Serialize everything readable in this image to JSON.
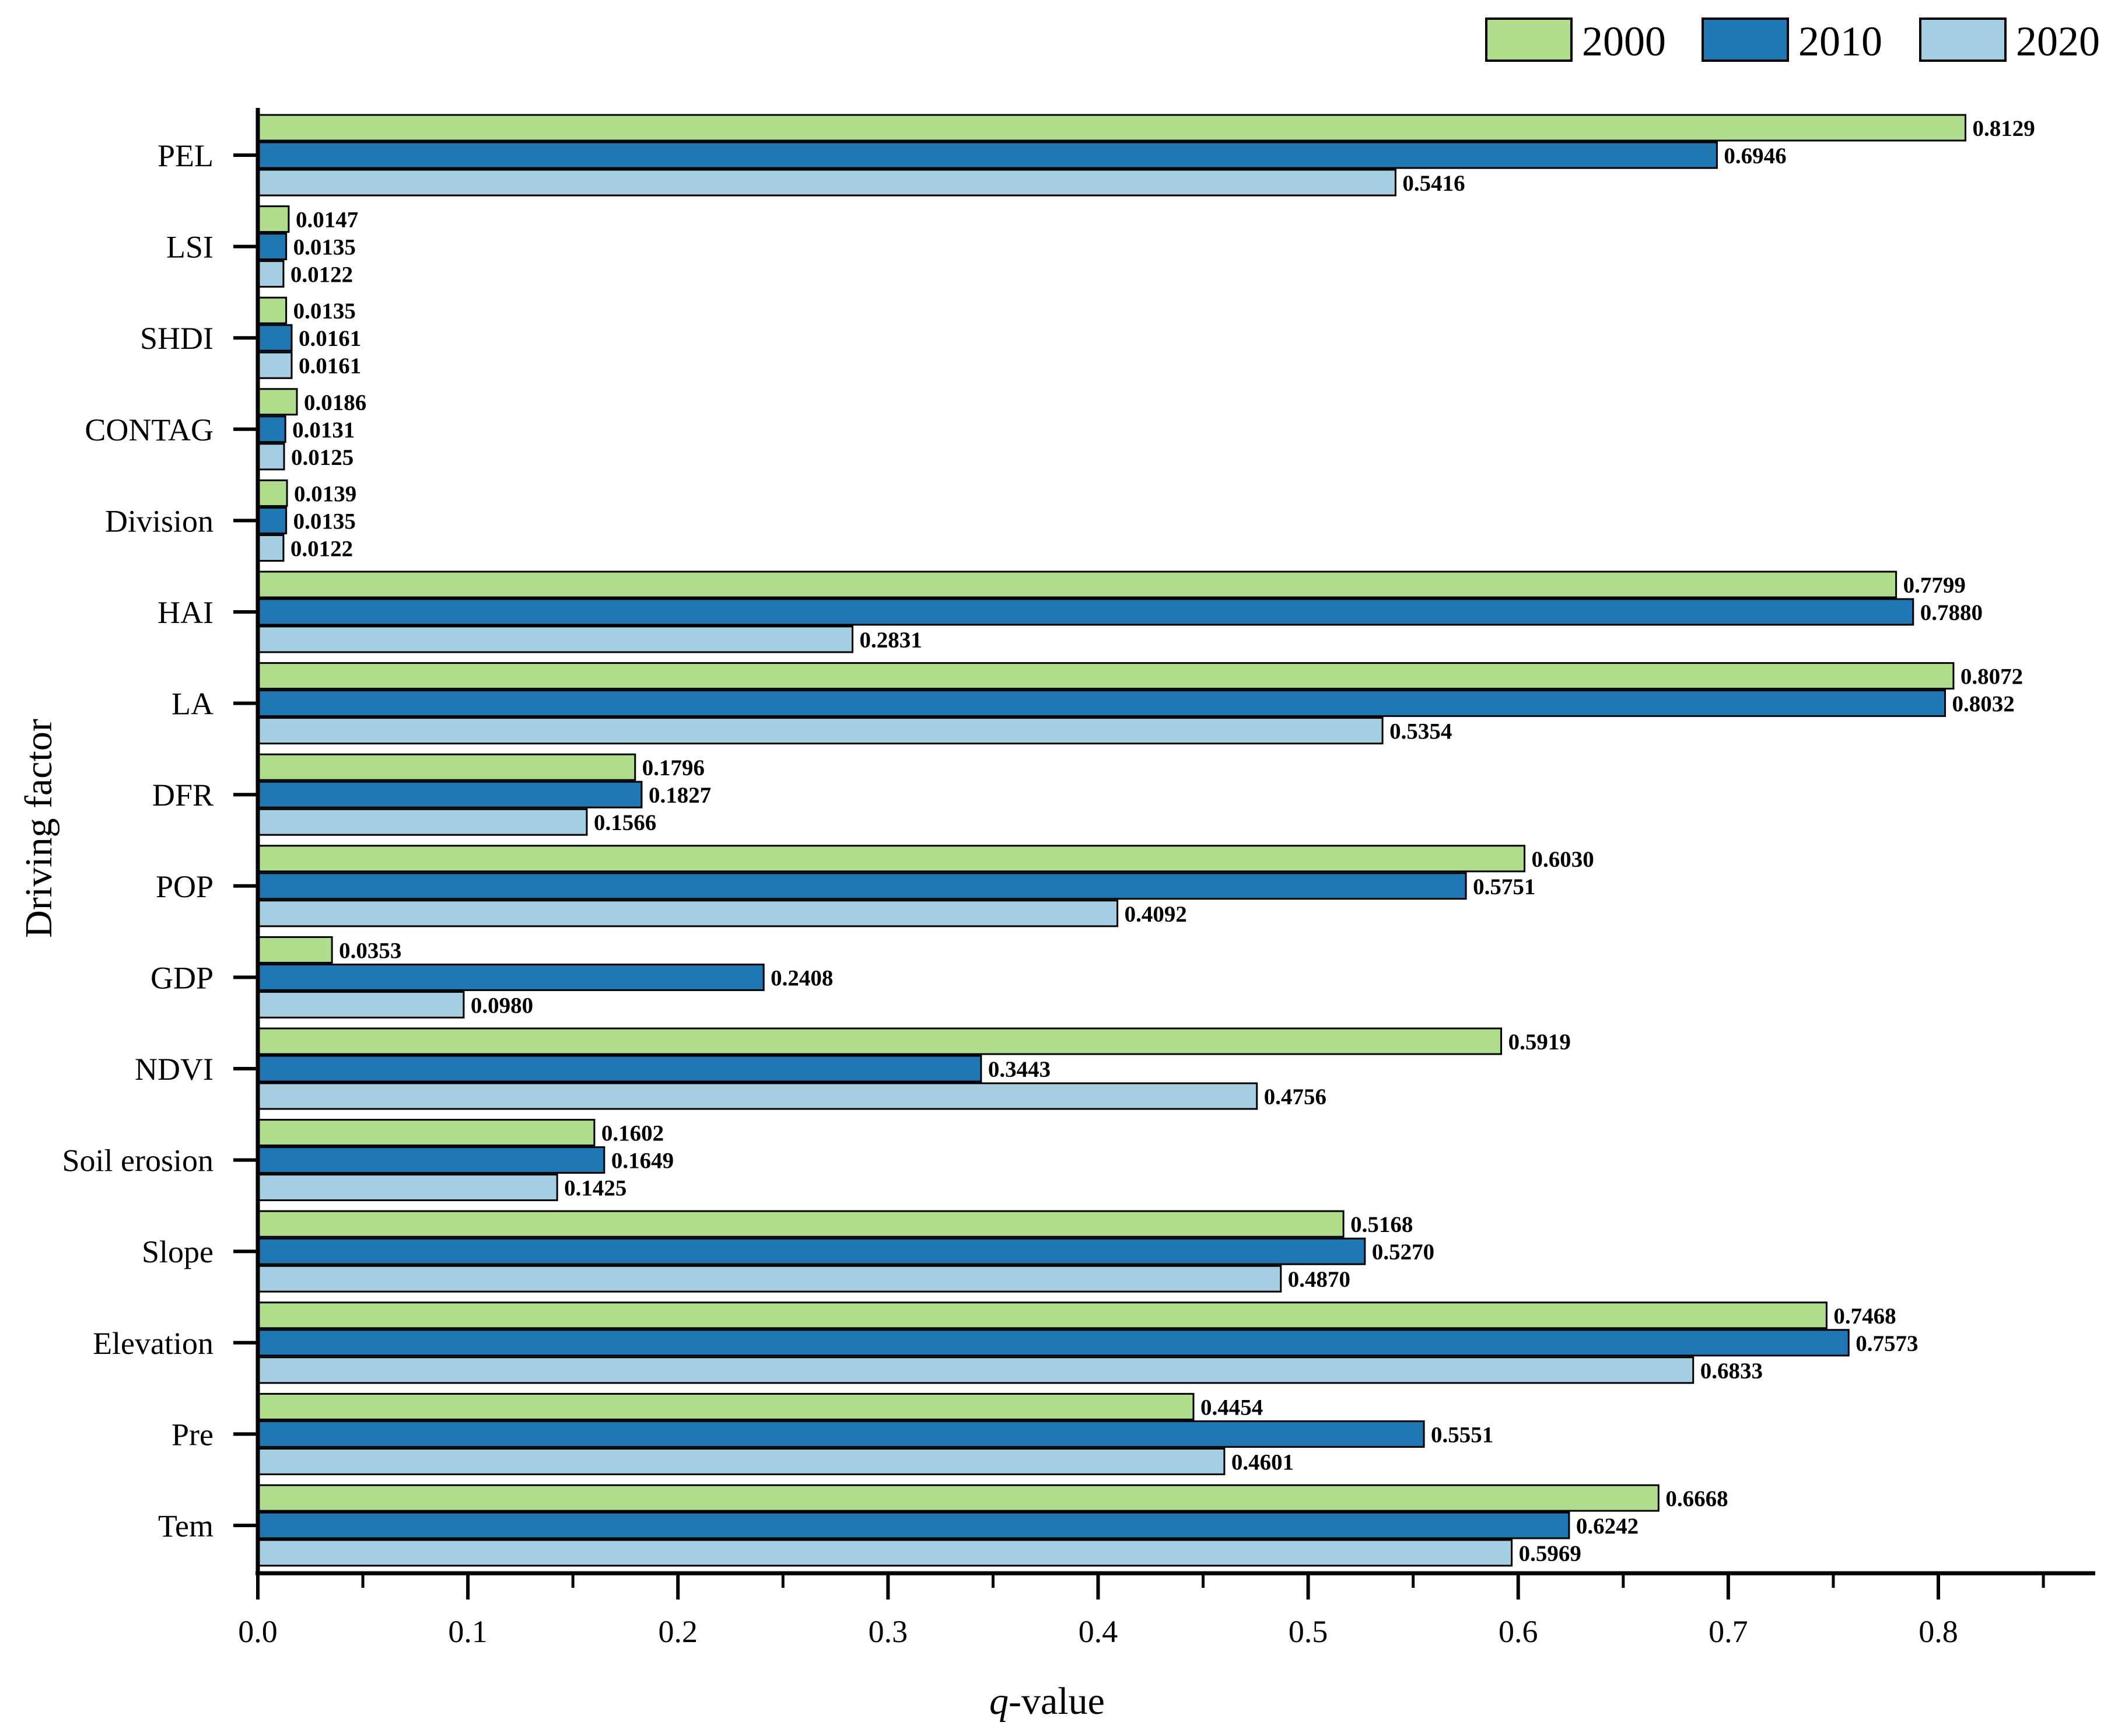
{
  "chart_data": {
    "type": "bar",
    "orientation": "horizontal",
    "categories": [
      "PEL",
      "LSI",
      "SHDI",
      "CONTAG",
      "Division",
      "HAI",
      "LA",
      "DFR",
      "POP",
      "GDP",
      "NDVI",
      "Soil erosion",
      "Slope",
      "Elevation",
      "Pre",
      "Tem"
    ],
    "series": [
      {
        "name": "2000",
        "color": "#b0dd8b",
        "values": [
          0.8129,
          0.0147,
          0.0135,
          0.0186,
          0.0139,
          0.7799,
          0.8072,
          0.1796,
          0.603,
          0.0353,
          0.5919,
          0.1602,
          0.5168,
          0.7468,
          0.4454,
          0.6668
        ],
        "labels": [
          "0.8129",
          "0.0147",
          "0.0135",
          "0.0186",
          "0.0139",
          "0.7799",
          "0.8072",
          "0.1796",
          "0.6030",
          "0.0353",
          "0.5919",
          "0.1602",
          "0.5168",
          "0.7468",
          "0.4454",
          "0.6668"
        ]
      },
      {
        "name": "2010",
        "color": "#1f77b4",
        "values": [
          0.6946,
          0.0135,
          0.0161,
          0.0131,
          0.0135,
          0.788,
          0.8032,
          0.1827,
          0.5751,
          0.2408,
          0.3443,
          0.1649,
          0.527,
          0.7573,
          0.5551,
          0.6242
        ],
        "labels": [
          "0.6946",
          "0.0135",
          "0.0161",
          "0.0131",
          "0.0135",
          "0.7880",
          "0.8032",
          "0.1827",
          "0.5751",
          "0.2408",
          "0.3443",
          "0.1649",
          "0.5270",
          "0.7573",
          "0.5551",
          "0.6242"
        ]
      },
      {
        "name": "2020",
        "color": "#a6cee3",
        "values": [
          0.5416,
          0.0122,
          0.0161,
          0.0125,
          0.0122,
          0.2831,
          0.5354,
          0.1566,
          0.4092,
          0.098,
          0.4756,
          0.1425,
          0.487,
          0.6833,
          0.4601,
          0.5969
        ],
        "labels": [
          "0.5416",
          "0.0122",
          "0.0161",
          "0.0125",
          "0.0122",
          "0.2831",
          "0.5354",
          "0.1566",
          "0.4092",
          "0.0980",
          "0.4756",
          "0.1425",
          "0.4870",
          "0.6833",
          "0.4601",
          "0.5969"
        ]
      }
    ],
    "xlabel_italic": "q",
    "xlabel_rest": "-value",
    "ylabel": "Driving factor",
    "xlim": [
      0,
      0.88
    ],
    "xticks": [
      "0.0",
      "0.1",
      "0.2",
      "0.3",
      "0.4",
      "0.5",
      "0.6",
      "0.7",
      "0.8"
    ],
    "legend_position": "top-right",
    "grid": false
  }
}
